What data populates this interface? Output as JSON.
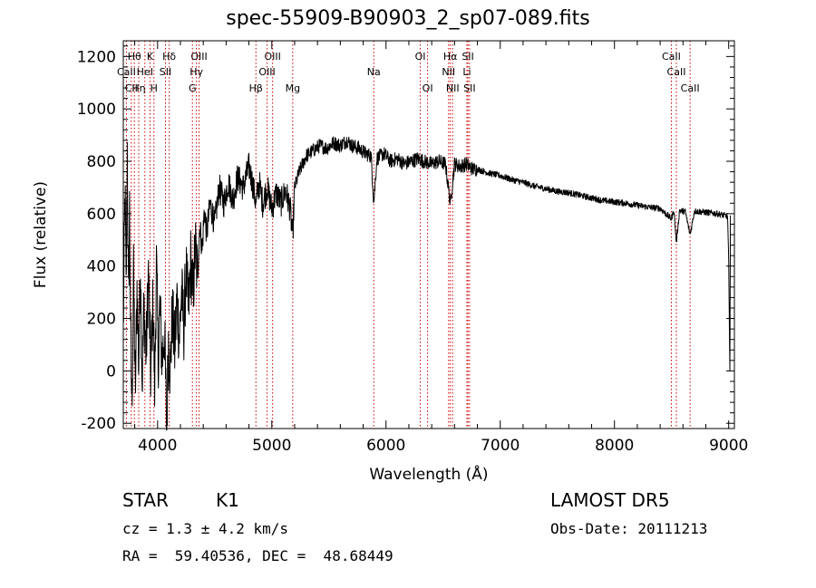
{
  "header": {
    "title": "spec-55909-B90903_2_sp07-089.fits"
  },
  "footer": {
    "object_class": "STAR",
    "subclass": "K1",
    "cz": "cz = 1.3 ± 4.2 km/s",
    "coords": "RA =  59.40536, DEC =  48.68449",
    "survey": "LAMOST DR5",
    "obs_date": "Obs-Date: 20111213"
  },
  "chart_data": {
    "type": "line",
    "title": "spec-55909-B90903_2_sp07-089.fits",
    "xlabel": "Wavelength (Å)",
    "ylabel": "Flux (relative)",
    "xlim": [
      3700,
      9050
    ],
    "ylim": [
      -220,
      1260
    ],
    "x_ticks": [
      4000,
      5000,
      6000,
      7000,
      8000,
      9000
    ],
    "y_ticks": [
      -200,
      0,
      200,
      400,
      600,
      800,
      1000,
      1200
    ],
    "grid": false,
    "line_color": "#000000",
    "marker_color": "#cc0000",
    "spectrum_anchors": [
      [
        3700,
        150
      ],
      [
        3715,
        700
      ],
      [
        3725,
        300
      ],
      [
        3735,
        850
      ],
      [
        3745,
        250
      ],
      [
        3755,
        620
      ],
      [
        3765,
        100
      ],
      [
        3775,
        -120
      ],
      [
        3790,
        350
      ],
      [
        3805,
        -100
      ],
      [
        3820,
        320
      ],
      [
        3835,
        20
      ],
      [
        3850,
        420
      ],
      [
        3865,
        -50
      ],
      [
        3880,
        250
      ],
      [
        3900,
        60
      ],
      [
        3920,
        380
      ],
      [
        3940,
        -10
      ],
      [
        3960,
        260
      ],
      [
        3975,
        -60
      ],
      [
        3990,
        420
      ],
      [
        4005,
        40
      ],
      [
        4020,
        240
      ],
      [
        4040,
        40
      ],
      [
        4060,
        150
      ],
      [
        4080,
        -220
      ],
      [
        4095,
        120
      ],
      [
        4110,
        0
      ],
      [
        4130,
        220
      ],
      [
        4150,
        80
      ],
      [
        4170,
        280
      ],
      [
        4190,
        120
      ],
      [
        4210,
        300
      ],
      [
        4230,
        170
      ],
      [
        4250,
        380
      ],
      [
        4270,
        220
      ],
      [
        4290,
        420
      ],
      [
        4310,
        280
      ],
      [
        4330,
        480
      ],
      [
        4350,
        360
      ],
      [
        4370,
        560
      ],
      [
        4390,
        460
      ],
      [
        4410,
        620
      ],
      [
        4430,
        520
      ],
      [
        4460,
        640
      ],
      [
        4500,
        560
      ],
      [
        4540,
        700
      ],
      [
        4580,
        640
      ],
      [
        4620,
        720
      ],
      [
        4660,
        650
      ],
      [
        4700,
        740
      ],
      [
        4750,
        700
      ],
      [
        4800,
        780
      ],
      [
        4830,
        720
      ],
      [
        4861,
        640
      ],
      [
        4890,
        720
      ],
      [
        4920,
        640
      ],
      [
        4960,
        700
      ],
      [
        5000,
        620
      ],
      [
        5040,
        680
      ],
      [
        5080,
        640
      ],
      [
        5120,
        690
      ],
      [
        5160,
        620
      ],
      [
        5183,
        510
      ],
      [
        5200,
        700
      ],
      [
        5240,
        760
      ],
      [
        5300,
        820
      ],
      [
        5360,
        840
      ],
      [
        5420,
        860
      ],
      [
        5480,
        850
      ],
      [
        5540,
        870
      ],
      [
        5600,
        860
      ],
      [
        5660,
        880
      ],
      [
        5700,
        860
      ],
      [
        5760,
        850
      ],
      [
        5820,
        830
      ],
      [
        5870,
        820
      ],
      [
        5893,
        640
      ],
      [
        5920,
        810
      ],
      [
        5980,
        830
      ],
      [
        6040,
        800
      ],
      [
        6100,
        810
      ],
      [
        6160,
        790
      ],
      [
        6220,
        800
      ],
      [
        6280,
        810
      ],
      [
        6330,
        800
      ],
      [
        6400,
        790
      ],
      [
        6460,
        800
      ],
      [
        6520,
        790
      ],
      [
        6563,
        640
      ],
      [
        6600,
        790
      ],
      [
        6650,
        780
      ],
      [
        6700,
        790
      ],
      [
        6760,
        770
      ],
      [
        6800,
        770
      ],
      [
        6900,
        755
      ],
      [
        7000,
        745
      ],
      [
        7100,
        730
      ],
      [
        7200,
        720
      ],
      [
        7300,
        705
      ],
      [
        7400,
        695
      ],
      [
        7500,
        685
      ],
      [
        7600,
        680
      ],
      [
        7700,
        670
      ],
      [
        7800,
        660
      ],
      [
        7900,
        650
      ],
      [
        8000,
        645
      ],
      [
        8100,
        640
      ],
      [
        8200,
        632
      ],
      [
        8300,
        625
      ],
      [
        8400,
        620
      ],
      [
        8498,
        580
      ],
      [
        8520,
        615
      ],
      [
        8542,
        490
      ],
      [
        8570,
        612
      ],
      [
        8620,
        608
      ],
      [
        8662,
        520
      ],
      [
        8700,
        610
      ],
      [
        8800,
        605
      ],
      [
        8900,
        600
      ],
      [
        8990,
        590
      ],
      [
        9000,
        420
      ],
      [
        9010,
        10
      ],
      [
        9015,
        600
      ]
    ],
    "line_markers": [
      {
        "label": "Hθ",
        "x": 3797,
        "row": 0
      },
      {
        "label": "K",
        "x": 3934,
        "row": 0
      },
      {
        "label": "Hδ",
        "x": 4102,
        "row": 0
      },
      {
        "label": "OIII",
        "x": 4363,
        "row": 0
      },
      {
        "label": "OIII",
        "x": 5007,
        "row": 0
      },
      {
        "label": "OI",
        "x": 6300,
        "row": 0
      },
      {
        "label": "Hα",
        "x": 6563,
        "row": 0
      },
      {
        "label": "SII",
        "x": 6717,
        "row": 0
      },
      {
        "label": "CaII",
        "x": 8498,
        "row": 0
      },
      {
        "label": "CaII",
        "x": 3727,
        "row": 1
      },
      {
        "label": "HeI",
        "x": 3889,
        "row": 1
      },
      {
        "label": "SII",
        "x": 4069,
        "row": 1
      },
      {
        "label": "Hγ",
        "x": 4340,
        "row": 1
      },
      {
        "label": "OIII",
        "x": 4959,
        "row": 1
      },
      {
        "label": "Na",
        "x": 5893,
        "row": 1
      },
      {
        "label": "NII",
        "x": 6548,
        "row": 1
      },
      {
        "label": "Li",
        "x": 6708,
        "row": 1
      },
      {
        "label": "CaII",
        "x": 8542,
        "row": 1
      },
      {
        "label": "CII",
        "x": 3770,
        "row": 2
      },
      {
        "label": "Hη",
        "x": 3835,
        "row": 2
      },
      {
        "label": "H",
        "x": 3968,
        "row": 2
      },
      {
        "label": "G",
        "x": 4305,
        "row": 2
      },
      {
        "label": "Hβ",
        "x": 4861,
        "row": 2
      },
      {
        "label": "Mg",
        "x": 5183,
        "row": 2
      },
      {
        "label": "OI",
        "x": 6364,
        "row": 2
      },
      {
        "label": "NII",
        "x": 6583,
        "row": 2
      },
      {
        "label": "SII",
        "x": 6731,
        "row": 2
      },
      {
        "label": "CaII",
        "x": 8662,
        "row": 2
      }
    ]
  }
}
